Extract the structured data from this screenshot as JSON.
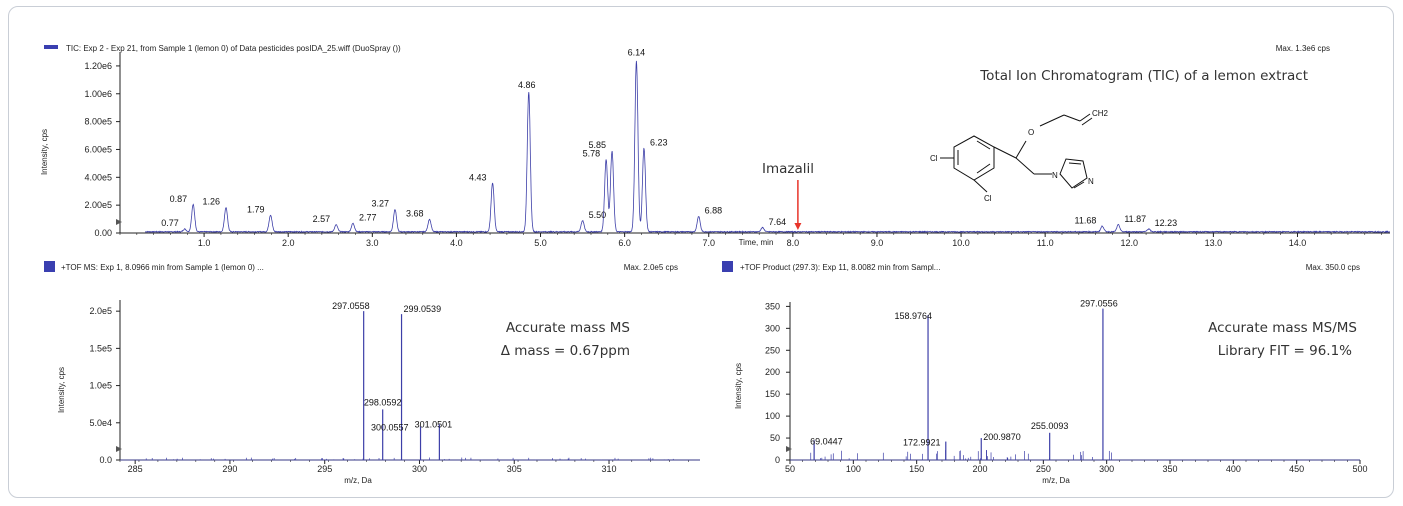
{
  "colors": {
    "trace": "#3d3fa8",
    "legend_swatch": "#3a3fb0",
    "arrow": "#e8342a",
    "axis": "#222222",
    "frame": "#c9ced6"
  },
  "chart_data": [
    {
      "id": "tic",
      "type": "line",
      "legend_text": "TIC: Exp 2 - Exp 21, from Sample 1 (lemon 0) of Data pesticides posIDA_25.wiff (DuoSpray ())",
      "max_text": "Max. 1.3e6 cps",
      "title": "Total Ion Chromatogram (TIC) of a lemon extract",
      "xlabel": "Time, min",
      "ylabel": "Intensity, cps",
      "xlim": [
        0.0,
        15.1
      ],
      "ylim": [
        0.0,
        1300000
      ],
      "x_ticks": [
        1.0,
        2.0,
        3.0,
        4.0,
        5.0,
        6.0,
        7.0,
        8.0,
        9.0,
        10.0,
        11.0,
        12.0,
        13.0,
        14.0
      ],
      "x_tick_labels": [
        "1.0",
        "2.0",
        "3.0",
        "4.0",
        "5.0",
        "6.0",
        "7.0",
        "8.0",
        "9.0",
        "10.0",
        "11.0",
        "12.0",
        "13.0",
        "14.0"
      ],
      "y_ticks": [
        0,
        200000,
        400000,
        600000,
        800000,
        1000000,
        1200000
      ],
      "y_tick_labels": [
        "0.00",
        "2.00e5",
        "4.00e5",
        "6.00e5",
        "8.00e5",
        "1.00e6",
        "1.20e6"
      ],
      "peaks": [
        {
          "x": 0.77,
          "y": 20000,
          "label": "0.77"
        },
        {
          "x": 0.87,
          "y": 195000,
          "label": "0.87"
        },
        {
          "x": 1.26,
          "y": 175000,
          "label": "1.26"
        },
        {
          "x": 1.79,
          "y": 120000,
          "label": "1.79"
        },
        {
          "x": 2.57,
          "y": 50000,
          "label": "2.57"
        },
        {
          "x": 2.77,
          "y": 60000,
          "label": "2.77"
        },
        {
          "x": 3.27,
          "y": 160000,
          "label": "3.27"
        },
        {
          "x": 3.68,
          "y": 90000,
          "label": "3.68"
        },
        {
          "x": 4.43,
          "y": 350000,
          "label": "4.43"
        },
        {
          "x": 4.86,
          "y": 1000000,
          "label": "4.86"
        },
        {
          "x": 5.5,
          "y": 80000,
          "label": "5.50"
        },
        {
          "x": 5.78,
          "y": 520000,
          "label": "5.78"
        },
        {
          "x": 5.85,
          "y": 580000,
          "label": "5.85"
        },
        {
          "x": 6.14,
          "y": 1230000,
          "label": "6.14"
        },
        {
          "x": 6.23,
          "y": 600000,
          "label": "6.23"
        },
        {
          "x": 6.88,
          "y": 110000,
          "label": "6.88"
        },
        {
          "x": 7.64,
          "y": 30000,
          "label": "7.64"
        },
        {
          "x": 11.68,
          "y": 40000,
          "label": "11.68"
        },
        {
          "x": 11.87,
          "y": 50000,
          "label": "11.87"
        },
        {
          "x": 12.23,
          "y": 20000,
          "label": "12.23"
        }
      ],
      "annotation": {
        "label": "Imazalil",
        "x": 8.06
      }
    },
    {
      "id": "ms",
      "type": "bar",
      "legend_text": "+TOF MS: Exp 1, 8.0966 min from Sample 1 (lemon 0) ...",
      "max_text": "Max. 2.0e5 cps",
      "note_lines": [
        "Accurate mass MS",
        "Δ mass = 0.67ppm"
      ],
      "xlabel": "m/z, Da",
      "ylabel": "Intensity, cps",
      "xlim": [
        284.2,
        314.8
      ],
      "ylim": [
        0,
        215000
      ],
      "x_ticks": [
        285,
        290,
        295,
        300,
        305,
        310
      ],
      "x_tick_labels": [
        "285",
        "290",
        "295",
        "300",
        "305",
        "310"
      ],
      "y_ticks": [
        0,
        50000,
        100000,
        150000,
        200000
      ],
      "y_tick_labels": [
        "0.0",
        "5.0e4",
        "1.0e5",
        "1.5e5",
        "2.0e5"
      ],
      "peaks": [
        {
          "x": 297.0558,
          "y": 200000,
          "label": "297.0558"
        },
        {
          "x": 298.0592,
          "y": 68000,
          "label": "298.0592"
        },
        {
          "x": 299.0539,
          "y": 196000,
          "label": "299.0539"
        },
        {
          "x": 300.0557,
          "y": 45000,
          "label": "300.0557"
        },
        {
          "x": 301.0501,
          "y": 48000,
          "label": "301.0501"
        }
      ]
    },
    {
      "id": "msms",
      "type": "bar",
      "legend_text": "+TOF Product (297.3): Exp 11, 8.0082 min from Sampl...",
      "max_text": "Max. 350.0 cps",
      "note_lines": [
        "Accurate mass MS/MS",
        "Library FIT = 96.1%"
      ],
      "xlabel": "m/z, Da",
      "ylabel": "Intensity, cps",
      "xlim": [
        50,
        500
      ],
      "ylim": [
        0,
        360
      ],
      "x_ticks": [
        50,
        100,
        150,
        200,
        250,
        300,
        350,
        400,
        450,
        500
      ],
      "x_tick_labels": [
        "50",
        "100",
        "150",
        "200",
        "250",
        "300",
        "350",
        "400",
        "450",
        "500"
      ],
      "y_ticks": [
        0,
        50,
        100,
        150,
        200,
        250,
        300,
        350
      ],
      "y_tick_labels": [
        "0",
        "50",
        "100",
        "150",
        "200",
        "250",
        "300",
        "350"
      ],
      "peaks": [
        {
          "x": 69.0447,
          "y": 45,
          "label": "69.0447"
        },
        {
          "x": 158.9764,
          "y": 330,
          "label": "158.9764"
        },
        {
          "x": 172.9921,
          "y": 42,
          "label": "172.9921"
        },
        {
          "x": 200.987,
          "y": 50,
          "label": "200.9870"
        },
        {
          "x": 255.0093,
          "y": 62,
          "label": "255.0093"
        },
        {
          "x": 297.0556,
          "y": 345,
          "label": "297.0556"
        }
      ]
    }
  ],
  "structure": {
    "name": "imazalil-structure",
    "atom_labels": [
      "Cl",
      "Cl",
      "O",
      "CH2",
      "N",
      "N"
    ]
  }
}
